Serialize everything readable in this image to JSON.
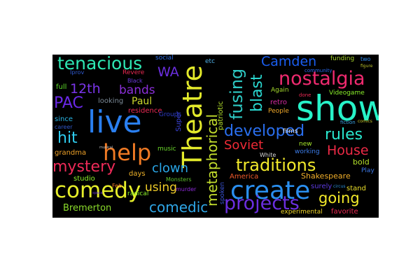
{
  "words": {
    "show": {
      "text": "show",
      "color": "#27f2c8"
    },
    "live": {
      "text": "live",
      "color": "#2a7ff0"
    },
    "theatre": {
      "text": "Theatre",
      "color": "#e3ea2b"
    },
    "create": {
      "text": "create",
      "color": "#2a8ff0"
    },
    "comedy": {
      "text": "comedy",
      "color": "#e6ee2a"
    },
    "help": {
      "text": "help",
      "color": "#f07a24"
    },
    "projects": {
      "text": "projects",
      "color": "#6b2ee0"
    },
    "nostalgia": {
      "text": "nostalgia",
      "color": "#ef2a6f"
    },
    "tenacious": {
      "text": "tenacious",
      "color": "#2ee8b4"
    },
    "developed": {
      "text": "developed",
      "color": "#2a6ff0"
    },
    "traditions": {
      "text": "traditions",
      "color": "#f1e92b"
    },
    "comedic": {
      "text": "comedic",
      "color": "#2fa6e6"
    },
    "metaphorical": {
      "text": "metaphorical",
      "color": "#c5df2d"
    },
    "mystery": {
      "text": "mystery",
      "color": "#ee2a58"
    },
    "fusing": {
      "text": "fusing",
      "color": "#2ec9c3"
    },
    "blast": {
      "text": "blast",
      "color": "#2ad8d0"
    },
    "camden": {
      "text": "Camden",
      "color": "#1a5ef0"
    },
    "soviet": {
      "text": "Soviet",
      "color": "#f02a36"
    },
    "rules": {
      "text": "rules",
      "color": "#2ae8d0"
    },
    "going": {
      "text": "going",
      "color": "#f3ea2a"
    },
    "house": {
      "text": "House",
      "color": "#ee2a46"
    },
    "clown": {
      "text": "clown",
      "color": "#2aa7e8"
    },
    "using": {
      "text": "using",
      "color": "#f2ce29"
    },
    "hit": {
      "text": "hit",
      "color": "#2fcdf0"
    },
    "bands": {
      "text": "bands",
      "color": "#8a2fd8"
    },
    "twelfth": {
      "text": "12th",
      "color": "#7a35ea"
    },
    "wa": {
      "text": "WA",
      "color": "#6b2ee0"
    },
    "pac": {
      "text": "PAC",
      "color": "#6a28e6"
    },
    "paul": {
      "text": "Paul",
      "color": "#c9d62c"
    },
    "bremerton": {
      "text": "Bremerton",
      "color": "#8bdc2b"
    },
    "shakespeare": {
      "text": "Shakespeare",
      "color": "#f0ae2a"
    },
    "videogame": {
      "text": "Videogame",
      "color": "#8af02a"
    },
    "funding": {
      "text": "funding",
      "color": "#a6d32b"
    },
    "again": {
      "text": "Again",
      "color": "#a3d82b"
    },
    "retro": {
      "text": "retro",
      "color": "#d62aa0"
    },
    "people": {
      "text": "People",
      "color": "#f0a82a"
    },
    "community": {
      "text": "community",
      "color": "#2a6af0"
    },
    "two": {
      "text": "two",
      "color": "#2f8cf0"
    },
    "full": {
      "text": "full",
      "color": "#5fdc2b"
    },
    "iprov": {
      "text": "Iprov",
      "color": "#2f5ad0"
    },
    "revere": {
      "text": "Revere",
      "color": "#ec2a52"
    },
    "looking": {
      "text": "looking",
      "color": "#7c8a97"
    },
    "since": {
      "text": "since",
      "color": "#2ab6e6"
    },
    "career": {
      "text": "career",
      "color": "#3057c9"
    },
    "grandma": {
      "text": "grandma",
      "color": "#f0a228"
    },
    "studio": {
      "text": "studio",
      "color": "#8cf02a"
    },
    "residence": {
      "text": "residence",
      "color": "#ee2a55"
    },
    "social": {
      "text": "social",
      "color": "#2e70e8"
    },
    "etc": {
      "text": "etc",
      "color": "#4fb0e6"
    },
    "super": {
      "text": "Super",
      "color": "#3d45e0"
    },
    "groups": {
      "text": "Groups",
      "color": "#2c3cc5"
    },
    "music": {
      "text": "music",
      "color": "#6bd82b"
    },
    "days": {
      "text": "days",
      "color": "#f0b42a"
    },
    "monsters": {
      "text": "Monsters",
      "color": "#5ec02b"
    },
    "murder": {
      "text": "murder",
      "color": "#8c2ad8"
    },
    "radical": {
      "text": "radical",
      "color": "#8cf02a"
    },
    "feb": {
      "text": "Feb",
      "color": "#f07a24"
    },
    "america": {
      "text": "America",
      "color": "#f05a2a"
    },
    "white": {
      "text": "White",
      "color": "#d7d7d7"
    },
    "new": {
      "text": "new",
      "color": "#a7e82b"
    },
    "working": {
      "text": "working",
      "color": "#3c7ce8"
    },
    "films": {
      "text": "films",
      "color": "#e0e0e0"
    },
    "bold": {
      "text": "bold",
      "color": "#b5e32b"
    },
    "play": {
      "text": "Play",
      "color": "#3c78e6"
    },
    "stand": {
      "text": "stand",
      "color": "#eadf2a"
    },
    "surely": {
      "text": "surely",
      "color": "#5c3ae0"
    },
    "experimental": {
      "text": "experimental",
      "color": "#f0d62a"
    },
    "favorite": {
      "text": "favorite",
      "color": "#ec2a55"
    },
    "black": {
      "text": "Black",
      "color": "#6a3ad8"
    },
    "spoken": {
      "text": "spoken",
      "color": "#3a54d8"
    },
    "patriotic": {
      "text": "patriotic",
      "color": "#b4e02b"
    },
    "fiction": {
      "text": "fiction",
      "color": "#3aa0e0"
    },
    "done": {
      "text": "done",
      "color": "#ee2a55"
    },
    "figure": {
      "text": "figure",
      "color": "#b9c02b"
    },
    "comics": {
      "text": "comics",
      "color": "#c9c92b"
    },
    "circus": {
      "text": "circus",
      "color": "#2a8fd8"
    },
    "musical": {
      "text": "musical",
      "color": "#c0c0c0"
    },
    "space": {
      "text": "space",
      "color": "#6a3ad8"
    }
  }
}
